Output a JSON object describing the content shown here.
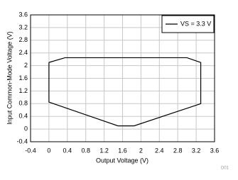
{
  "chart_data": {
    "type": "line",
    "x_label": "Output Voltage (V)",
    "y_label": "Input Common-Mode Voltage (V)",
    "series": [
      {
        "name": "VS = 3.3 V",
        "color": "#000000",
        "x": [
          0,
          0.35,
          3.0,
          3.3,
          3.3,
          1.85,
          1.5,
          0,
          0
        ],
        "values": [
          2.1,
          2.25,
          2.25,
          2.1,
          0.8,
          0.1,
          0.1,
          0.85,
          2.1
        ]
      }
    ],
    "xlim": [
      -0.4,
      3.6
    ],
    "xticks": [
      -0.4,
      0,
      0.4,
      0.8,
      1.2,
      1.6,
      2,
      2.4,
      2.8,
      3.2,
      3.6
    ],
    "ylim": [
      -0.4,
      3.6
    ],
    "yticks": [
      -0.4,
      0,
      0.4,
      0.8,
      1.2,
      1.6,
      2,
      2.4,
      2.8,
      3.2,
      3.6
    ],
    "grid": true,
    "legend": "top-right",
    "annotation": "D01"
  }
}
